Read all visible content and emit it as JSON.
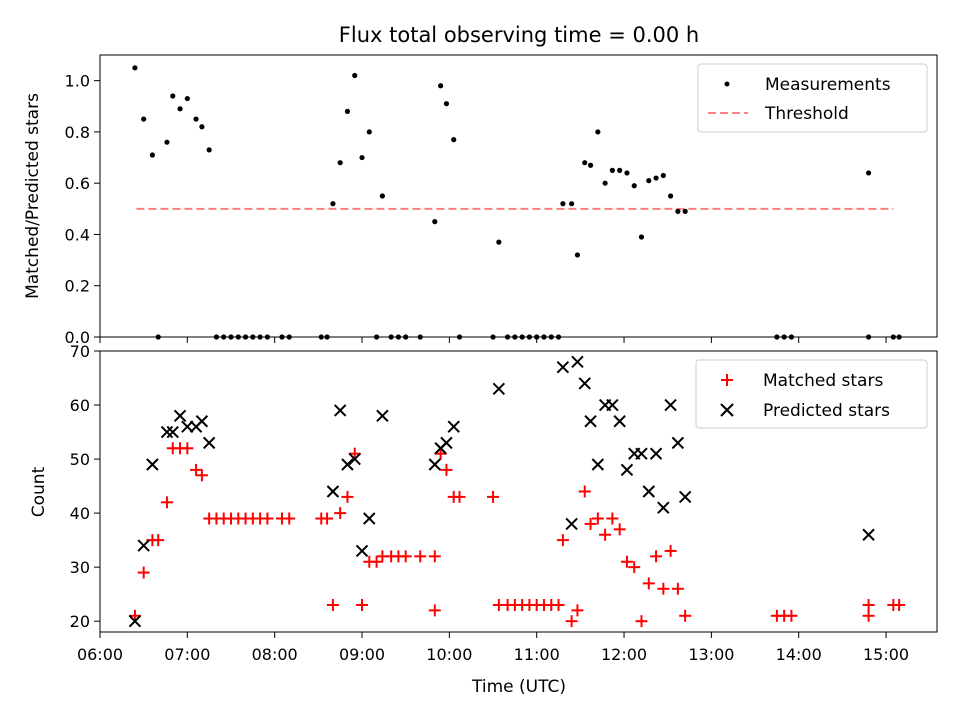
{
  "chart_data": [
    {
      "type": "scatter",
      "title": "Flux total observing time = 0.00 h",
      "xlabel": "",
      "ylabel": "Matched/Predicted stars",
      "xlim": [
        "06:00",
        "15:35"
      ],
      "ylim": [
        0,
        1.1
      ],
      "yticks": [
        0.0,
        0.2,
        0.4,
        0.6,
        0.8,
        1.0
      ],
      "ytick_labels": [
        "0.0",
        "0.2",
        "0.4",
        "0.6",
        "0.8",
        "1.0"
      ],
      "legend_position": "top-right",
      "series": [
        {
          "name": "Measurements",
          "color": "#000000",
          "marker": "dot",
          "points": [
            {
              "x": "06:24",
              "y": 1.05
            },
            {
              "x": "06:30",
              "y": 0.85
            },
            {
              "x": "06:36",
              "y": 0.71
            },
            {
              "x": "06:40",
              "y": 0.0
            },
            {
              "x": "06:46",
              "y": 0.76
            },
            {
              "x": "06:50",
              "y": 0.94
            },
            {
              "x": "06:55",
              "y": 0.89
            },
            {
              "x": "07:00",
              "y": 0.93
            },
            {
              "x": "07:06",
              "y": 0.85
            },
            {
              "x": "07:10",
              "y": 0.82
            },
            {
              "x": "07:15",
              "y": 0.73
            },
            {
              "x": "07:20",
              "y": 0.0
            },
            {
              "x": "07:25",
              "y": 0.0
            },
            {
              "x": "07:30",
              "y": 0.0
            },
            {
              "x": "07:35",
              "y": 0.0
            },
            {
              "x": "07:40",
              "y": 0.0
            },
            {
              "x": "07:45",
              "y": 0.0
            },
            {
              "x": "07:50",
              "y": 0.0
            },
            {
              "x": "07:55",
              "y": 0.0
            },
            {
              "x": "08:05",
              "y": 0.0
            },
            {
              "x": "08:10",
              "y": 0.0
            },
            {
              "x": "08:32",
              "y": 0.0
            },
            {
              "x": "08:36",
              "y": 0.0
            },
            {
              "x": "08:40",
              "y": 0.52
            },
            {
              "x": "08:45",
              "y": 0.68
            },
            {
              "x": "08:50",
              "y": 0.88
            },
            {
              "x": "08:55",
              "y": 1.02
            },
            {
              "x": "09:00",
              "y": 0.7
            },
            {
              "x": "09:05",
              "y": 0.8
            },
            {
              "x": "09:10",
              "y": 0.0
            },
            {
              "x": "09:14",
              "y": 0.55
            },
            {
              "x": "09:20",
              "y": 0.0
            },
            {
              "x": "09:25",
              "y": 0.0
            },
            {
              "x": "09:30",
              "y": 0.0
            },
            {
              "x": "09:40",
              "y": 0.0
            },
            {
              "x": "09:50",
              "y": 0.45
            },
            {
              "x": "09:54",
              "y": 0.98
            },
            {
              "x": "09:58",
              "y": 0.91
            },
            {
              "x": "10:03",
              "y": 0.77
            },
            {
              "x": "10:07",
              "y": 0.0
            },
            {
              "x": "10:30",
              "y": 0.0
            },
            {
              "x": "10:34",
              "y": 0.37
            },
            {
              "x": "10:40",
              "y": 0.0
            },
            {
              "x": "10:45",
              "y": 0.0
            },
            {
              "x": "10:50",
              "y": 0.0
            },
            {
              "x": "10:55",
              "y": 0.0
            },
            {
              "x": "11:00",
              "y": 0.0
            },
            {
              "x": "11:05",
              "y": 0.0
            },
            {
              "x": "11:10",
              "y": 0.0
            },
            {
              "x": "11:15",
              "y": 0.0
            },
            {
              "x": "11:18",
              "y": 0.52
            },
            {
              "x": "11:24",
              "y": 0.52
            },
            {
              "x": "11:28",
              "y": 0.32
            },
            {
              "x": "11:33",
              "y": 0.68
            },
            {
              "x": "11:37",
              "y": 0.67
            },
            {
              "x": "11:42",
              "y": 0.8
            },
            {
              "x": "11:47",
              "y": 0.6
            },
            {
              "x": "11:52",
              "y": 0.65
            },
            {
              "x": "11:57",
              "y": 0.65
            },
            {
              "x": "12:02",
              "y": 0.64
            },
            {
              "x": "12:07",
              "y": 0.59
            },
            {
              "x": "12:12",
              "y": 0.39
            },
            {
              "x": "12:17",
              "y": 0.61
            },
            {
              "x": "12:22",
              "y": 0.62
            },
            {
              "x": "12:27",
              "y": 0.63
            },
            {
              "x": "12:32",
              "y": 0.55
            },
            {
              "x": "12:37",
              "y": 0.49
            },
            {
              "x": "12:42",
              "y": 0.49
            },
            {
              "x": "13:45",
              "y": 0.0
            },
            {
              "x": "13:50",
              "y": 0.0
            },
            {
              "x": "13:55",
              "y": 0.0
            },
            {
              "x": "14:48",
              "y": 0.64
            },
            {
              "x": "14:48",
              "y": 0.0
            },
            {
              "x": "15:05",
              "y": 0.0
            },
            {
              "x": "15:09",
              "y": 0.0
            }
          ]
        },
        {
          "name": "Threshold",
          "color": "#ff7f7f",
          "line": "dashed",
          "points": [
            {
              "x": "06:25",
              "y": 0.5
            },
            {
              "x": "15:05",
              "y": 0.5
            }
          ]
        }
      ]
    },
    {
      "type": "scatter",
      "title": "",
      "xlabel": "Time (UTC)",
      "ylabel": "Count",
      "xlim": [
        "06:00",
        "15:35"
      ],
      "ylim": [
        18,
        70
      ],
      "xticks": [
        "06:00",
        "07:00",
        "08:00",
        "09:00",
        "10:00",
        "11:00",
        "12:00",
        "13:00",
        "14:00",
        "15:00"
      ],
      "yticks": [
        20,
        30,
        40,
        50,
        60,
        70
      ],
      "ytick_labels": [
        "20",
        "30",
        "40",
        "50",
        "60",
        "70"
      ],
      "legend_position": "top-right",
      "series": [
        {
          "name": "Matched stars",
          "color": "#ff0000",
          "marker": "plus",
          "points": [
            {
              "x": "06:24",
              "y": 21
            },
            {
              "x": "06:30",
              "y": 29
            },
            {
              "x": "06:36",
              "y": 35
            },
            {
              "x": "06:40",
              "y": 35
            },
            {
              "x": "06:46",
              "y": 42
            },
            {
              "x": "06:50",
              "y": 52
            },
            {
              "x": "06:55",
              "y": 52
            },
            {
              "x": "07:00",
              "y": 52
            },
            {
              "x": "07:06",
              "y": 48
            },
            {
              "x": "07:10",
              "y": 47
            },
            {
              "x": "07:15",
              "y": 39
            },
            {
              "x": "07:20",
              "y": 39
            },
            {
              "x": "07:25",
              "y": 39
            },
            {
              "x": "07:30",
              "y": 39
            },
            {
              "x": "07:35",
              "y": 39
            },
            {
              "x": "07:40",
              "y": 39
            },
            {
              "x": "07:45",
              "y": 39
            },
            {
              "x": "07:50",
              "y": 39
            },
            {
              "x": "07:55",
              "y": 39
            },
            {
              "x": "08:05",
              "y": 39
            },
            {
              "x": "08:10",
              "y": 39
            },
            {
              "x": "08:32",
              "y": 39
            },
            {
              "x": "08:36",
              "y": 39
            },
            {
              "x": "08:40",
              "y": 23
            },
            {
              "x": "08:45",
              "y": 40
            },
            {
              "x": "08:50",
              "y": 43
            },
            {
              "x": "08:55",
              "y": 51
            },
            {
              "x": "09:00",
              "y": 23
            },
            {
              "x": "09:05",
              "y": 31
            },
            {
              "x": "09:10",
              "y": 31
            },
            {
              "x": "09:14",
              "y": 32
            },
            {
              "x": "09:20",
              "y": 32
            },
            {
              "x": "09:25",
              "y": 32
            },
            {
              "x": "09:30",
              "y": 32
            },
            {
              "x": "09:40",
              "y": 32
            },
            {
              "x": "09:50",
              "y": 32
            },
            {
              "x": "09:50",
              "y": 22
            },
            {
              "x": "09:54",
              "y": 51
            },
            {
              "x": "09:58",
              "y": 48
            },
            {
              "x": "10:03",
              "y": 43
            },
            {
              "x": "10:07",
              "y": 43
            },
            {
              "x": "10:30",
              "y": 43
            },
            {
              "x": "10:34",
              "y": 23
            },
            {
              "x": "10:40",
              "y": 23
            },
            {
              "x": "10:45",
              "y": 23
            },
            {
              "x": "10:50",
              "y": 23
            },
            {
              "x": "10:55",
              "y": 23
            },
            {
              "x": "11:00",
              "y": 23
            },
            {
              "x": "11:05",
              "y": 23
            },
            {
              "x": "11:10",
              "y": 23
            },
            {
              "x": "11:15",
              "y": 23
            },
            {
              "x": "11:18",
              "y": 35
            },
            {
              "x": "11:24",
              "y": 20
            },
            {
              "x": "11:28",
              "y": 22
            },
            {
              "x": "11:33",
              "y": 44
            },
            {
              "x": "11:37",
              "y": 38
            },
            {
              "x": "11:42",
              "y": 39
            },
            {
              "x": "11:47",
              "y": 36
            },
            {
              "x": "11:52",
              "y": 39
            },
            {
              "x": "11:57",
              "y": 37
            },
            {
              "x": "12:02",
              "y": 31
            },
            {
              "x": "12:07",
              "y": 30
            },
            {
              "x": "12:12",
              "y": 20
            },
            {
              "x": "12:17",
              "y": 27
            },
            {
              "x": "12:22",
              "y": 32
            },
            {
              "x": "12:27",
              "y": 26
            },
            {
              "x": "12:32",
              "y": 33
            },
            {
              "x": "12:37",
              "y": 26
            },
            {
              "x": "12:42",
              "y": 21
            },
            {
              "x": "13:45",
              "y": 21
            },
            {
              "x": "13:50",
              "y": 21
            },
            {
              "x": "13:55",
              "y": 21
            },
            {
              "x": "14:48",
              "y": 23
            },
            {
              "x": "14:48",
              "y": 21
            },
            {
              "x": "15:05",
              "y": 23
            },
            {
              "x": "15:09",
              "y": 23
            }
          ]
        },
        {
          "name": "Predicted stars",
          "color": "#000000",
          "marker": "x",
          "points": [
            {
              "x": "06:24",
              "y": 20
            },
            {
              "x": "06:30",
              "y": 34
            },
            {
              "x": "06:36",
              "y": 49
            },
            {
              "x": "06:46",
              "y": 55
            },
            {
              "x": "06:50",
              "y": 55
            },
            {
              "x": "06:55",
              "y": 58
            },
            {
              "x": "07:00",
              "y": 56
            },
            {
              "x": "07:06",
              "y": 56
            },
            {
              "x": "07:10",
              "y": 57
            },
            {
              "x": "07:15",
              "y": 53
            },
            {
              "x": "08:40",
              "y": 44
            },
            {
              "x": "08:45",
              "y": 59
            },
            {
              "x": "08:50",
              "y": 49
            },
            {
              "x": "08:55",
              "y": 50
            },
            {
              "x": "09:00",
              "y": 33
            },
            {
              "x": "09:05",
              "y": 39
            },
            {
              "x": "09:14",
              "y": 58
            },
            {
              "x": "09:50",
              "y": 49
            },
            {
              "x": "09:54",
              "y": 52
            },
            {
              "x": "09:58",
              "y": 53
            },
            {
              "x": "10:03",
              "y": 56
            },
            {
              "x": "10:34",
              "y": 63
            },
            {
              "x": "11:18",
              "y": 67
            },
            {
              "x": "11:24",
              "y": 38
            },
            {
              "x": "11:28",
              "y": 68
            },
            {
              "x": "11:33",
              "y": 64
            },
            {
              "x": "11:37",
              "y": 57
            },
            {
              "x": "11:42",
              "y": 49
            },
            {
              "x": "11:47",
              "y": 60
            },
            {
              "x": "11:52",
              "y": 60
            },
            {
              "x": "11:57",
              "y": 57
            },
            {
              "x": "12:02",
              "y": 48
            },
            {
              "x": "12:07",
              "y": 51
            },
            {
              "x": "12:12",
              "y": 51
            },
            {
              "x": "12:17",
              "y": 44
            },
            {
              "x": "12:22",
              "y": 51
            },
            {
              "x": "12:27",
              "y": 41
            },
            {
              "x": "12:32",
              "y": 60
            },
            {
              "x": "12:37",
              "y": 53
            },
            {
              "x": "12:42",
              "y": 43
            },
            {
              "x": "14:48",
              "y": 36
            }
          ]
        }
      ]
    }
  ]
}
